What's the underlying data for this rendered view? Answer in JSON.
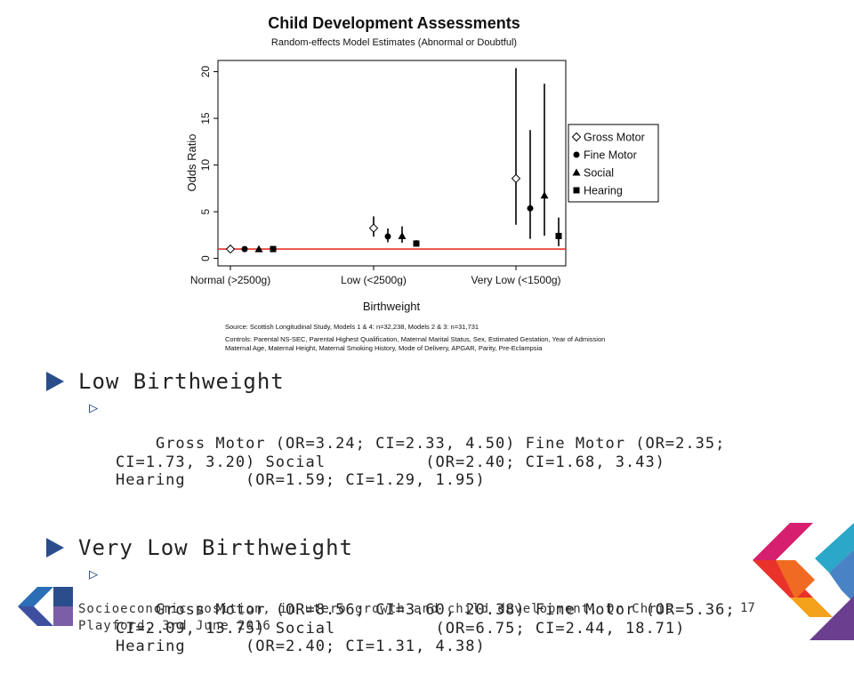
{
  "chart_data": {
    "type": "scatter",
    "title": "Child Development Assessments",
    "subtitle": "Random-effects Model Estimates (Abnormal or Doubtful)",
    "xlabel": "Birthweight",
    "ylabel": "Odds Ratio",
    "categories": [
      "Normal (>2500g)",
      "Low (<2500g)",
      "Very Low (<1500g)"
    ],
    "yticks": [
      0,
      5,
      10,
      15,
      20
    ],
    "ylim": [
      -0.8,
      21.2
    ],
    "reference_line": {
      "y": 1,
      "color": "#e8322a"
    },
    "legend_placement": "right",
    "series": [
      {
        "name": "Gross Motor",
        "marker": "diamond",
        "values": [
          1.0,
          3.24,
          8.56
        ],
        "ci_low": [
          1.0,
          2.33,
          3.6
        ],
        "ci_high": [
          1.0,
          4.5,
          20.38
        ]
      },
      {
        "name": "Fine Motor",
        "marker": "circle",
        "values": [
          1.0,
          2.35,
          5.36
        ],
        "ci_low": [
          1.0,
          1.73,
          2.09
        ],
        "ci_high": [
          1.0,
          3.2,
          13.75
        ]
      },
      {
        "name": "Social",
        "marker": "triangle",
        "values": [
          1.0,
          2.4,
          6.75
        ],
        "ci_low": [
          1.0,
          1.68,
          2.44
        ],
        "ci_high": [
          1.0,
          3.43,
          18.71
        ]
      },
      {
        "name": "Hearing",
        "marker": "square",
        "values": [
          1.0,
          1.59,
          2.4
        ],
        "ci_low": [
          1.0,
          1.29,
          1.31
        ],
        "ci_high": [
          1.0,
          1.95,
          4.38
        ]
      }
    ],
    "source_note": "Source: Scottish Longitudinal Study,  Models 1 & 4: n=32,238,  Models 2 & 3: n=31,731",
    "controls_note_1": "Controls: Parental NS-SEC, Parental Highest Qualification, Maternal Marital Status, Sex, Estimated Gestation, Year of Admission",
    "controls_note_2": "Maternal Age, Maternal Height, Maternal Smoking History, Mode of Delivery, APGAR, Parity, Pre-Eclampsia"
  },
  "bullets": {
    "low": {
      "heading": "Low Birthweight",
      "detail": "Gross Motor (OR=3.24; CI=2.33, 4.50) Fine Motor (OR=2.35;\nCI=1.73, 3.20) Social          (OR=2.40; CI=1.68, 3.43)\nHearing      (OR=1.59; CI=1.29, 1.95)"
    },
    "very_low": {
      "heading": "Very Low Birthweight",
      "detail": "Gross Motor (OR=8.56; CI=3.60, 20.38) Fine Motor (OR=5.36;\nCI=2.09, 13.75) Social          (OR=6.75; CI=2.44, 18.71)\nHearing      (OR=2.40; CI=1.31, 4.38)"
    }
  },
  "footer": {
    "text": "Socioeconomic position, in utero growth and child development, Dr Chris Playford, 3rd June 2016",
    "page": "17"
  },
  "colors": {
    "accent_blue": "#2a4e8c",
    "logo_magenta": "#d6206f",
    "logo_orange": "#f4a21c",
    "logo_teal": "#2aa7c9",
    "logo_purple": "#6b3e8f",
    "logo_red": "#e8322a"
  }
}
